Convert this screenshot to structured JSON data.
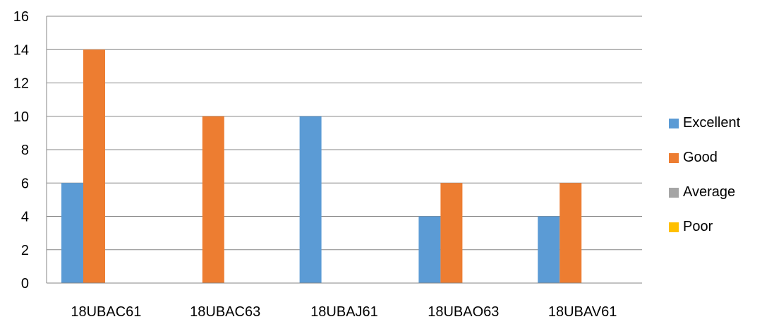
{
  "chart_data": {
    "type": "bar",
    "title": "",
    "xlabel": "",
    "ylabel": "",
    "ylim": [
      0,
      16
    ],
    "y_ticks": [
      0,
      2,
      4,
      6,
      8,
      10,
      12,
      14,
      16
    ],
    "grid": true,
    "legend_position": "right",
    "categories": [
      "18UBAC61",
      "18UBAC63",
      "18UBAJ61",
      "18UBAO63",
      "18UBAV61"
    ],
    "series": [
      {
        "name": "Excellent",
        "color": "#5b9bd5",
        "values": [
          6,
          0,
          10,
          4,
          4
        ]
      },
      {
        "name": "Good",
        "color": "#ed7d31",
        "values": [
          14,
          10,
          0,
          6,
          6
        ]
      },
      {
        "name": "Average",
        "color": "#a5a5a5",
        "values": [
          0,
          0,
          0,
          0,
          0
        ]
      },
      {
        "name": "Poor",
        "color": "#ffc000",
        "values": [
          0,
          0,
          0,
          0,
          0
        ]
      }
    ]
  }
}
